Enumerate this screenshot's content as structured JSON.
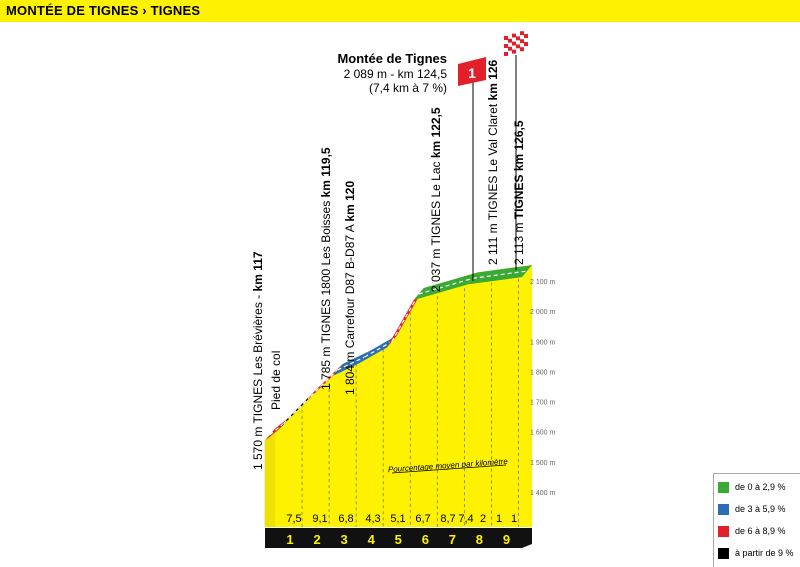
{
  "header": {
    "title": "MONTÉE DE TIGNES › TIGNES"
  },
  "summit": {
    "name": "Montée de Tignes",
    "line1": "2 089 m - km 124,5",
    "line2": "(7,4 km à 7 %)",
    "marker": "1"
  },
  "waypoints": [
    {
      "plain": "1 570 m TIGNES Les Brévières - ",
      "bold": "km 117",
      "sub": "Pied de col"
    },
    {
      "plain": "1 785 m TIGNES 1800 Les Boisses ",
      "bold": "km 119,5",
      "sub": ""
    },
    {
      "plain": "1 804 m Carrefour D87 B-D87 A ",
      "bold": "km 120",
      "sub": ""
    },
    {
      "plain": "2 037 m TIGNES Le Lac ",
      "bold": "km 122,5",
      "sub": ""
    },
    {
      "plain": "2 111 m TIGNES Le Val Claret ",
      "bold": "km 126",
      "sub": ""
    },
    {
      "plain": "2 113 m ",
      "bold": "TIGNES km 126,5",
      "sub": ""
    }
  ],
  "legend": [
    {
      "label": "de 0 à 2,9 %",
      "color": "#3aa935"
    },
    {
      "label": "de 3 à 5,9 %",
      "color": "#2c6eb5"
    },
    {
      "label": "de 6 à 8,9 %",
      "color": "#e3202a"
    },
    {
      "label": "à partir de 9 %",
      "color": "#000000"
    }
  ],
  "chart_data": {
    "type": "area",
    "title": "MONTÉE DE TIGNES › TIGNES",
    "x_unit": "km",
    "y_unit": "m",
    "xlim": [
      117,
      126.5
    ],
    "ylim": [
      1400,
      2100
    ],
    "y_ticks": [
      "1 400 m",
      "1 500 m",
      "1 600 m",
      "1 700 m",
      "1 800 m",
      "1 900 m",
      "2 000 m",
      "2 100 m"
    ],
    "y_tick_values": [
      1400,
      1500,
      1600,
      1700,
      1800,
      1900,
      2000,
      2100
    ],
    "km_markers": [
      "1",
      "2",
      "3",
      "4",
      "5",
      "6",
      "7",
      "8",
      "9"
    ],
    "gradients": [
      "7,5",
      "9,1",
      "6,8",
      "4,3",
      "5,1",
      "6,7",
      "8,7",
      "7,4",
      "2",
      "1",
      "1"
    ],
    "gradient_caption": "Pourcentage moyen par kilomètre",
    "profile": [
      {
        "km": 117,
        "alt": 1570,
        "grade": "red"
      },
      {
        "km": 117.5,
        "alt": 1607,
        "grade": "black"
      },
      {
        "km": 118.5,
        "alt": 1698,
        "grade": "red"
      },
      {
        "km": 119.5,
        "alt": 1785,
        "grade": "blue"
      },
      {
        "km": 120.5,
        "alt": 1828,
        "grade": "blue"
      },
      {
        "km": 121.5,
        "alt": 1879,
        "grade": "red"
      },
      {
        "km": 122.5,
        "alt": 2037,
        "grade": "green"
      },
      {
        "km": 124.5,
        "alt": 2089,
        "grade": "green"
      },
      {
        "km": 126.5,
        "alt": 2113,
        "grade": "green"
      }
    ]
  }
}
